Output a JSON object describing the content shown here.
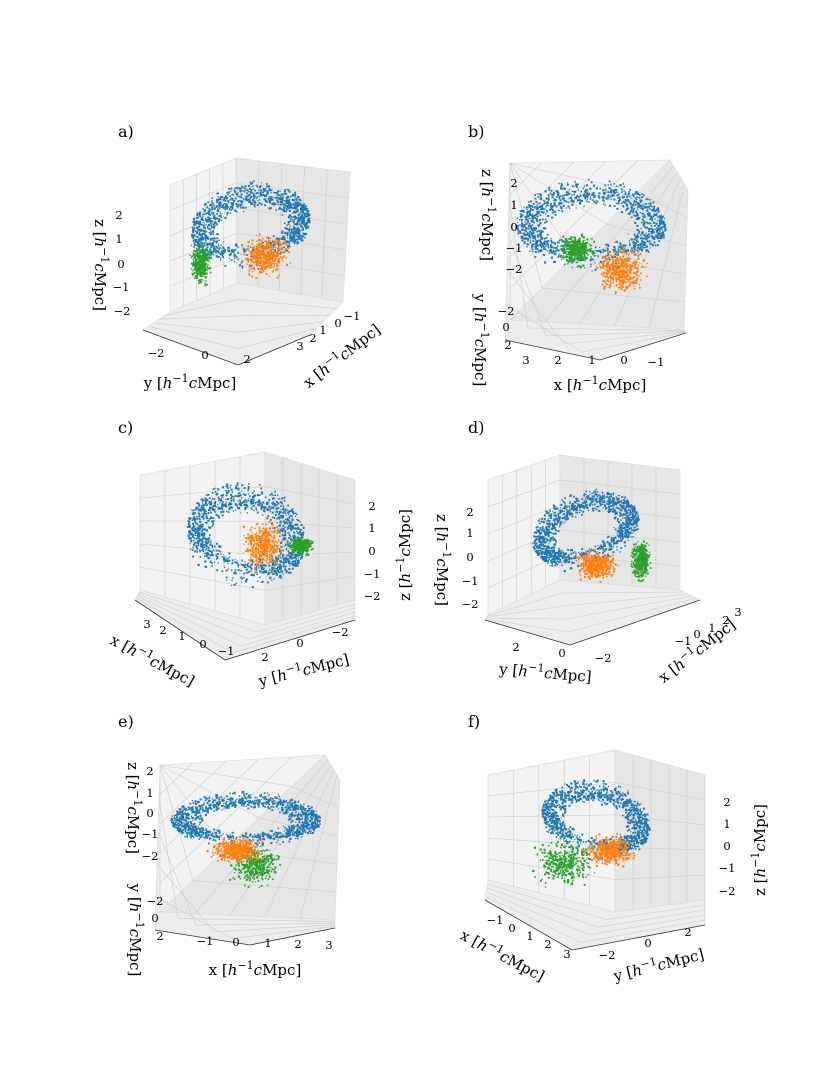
{
  "colors": {
    "blue": "#1f77b4",
    "orange": "#ff7f0e",
    "green": "#2ca02c",
    "pane_left": "#f2f2f2",
    "pane_right": "#e6e6e6",
    "pane_floor": "#ececec",
    "grid": "#cccccc"
  },
  "chart_data": [
    {
      "type": "scatter",
      "panel": "a)",
      "view": "elev 20, azim 30",
      "grid": true,
      "axes": {
        "x": {
          "label": "x  [h⁻¹cMpc]",
          "ticks": [
            "3",
            "2",
            "1",
            "0",
            "−1"
          ]
        },
        "y": {
          "label": "y  [h⁻¹cMpc]",
          "ticks": [
            "−2",
            "0",
            "2"
          ]
        },
        "z": {
          "label": "z  [h⁻¹cMpc]",
          "ticks": [
            "2",
            "1",
            "0",
            "−1",
            "−2"
          ]
        }
      },
      "series": [
        {
          "color": "blue"
        },
        {
          "color": "orange"
        },
        {
          "color": "green"
        }
      ]
    },
    {
      "type": "scatter",
      "panel": "b)",
      "view": "elev 20, azim 95",
      "grid": true,
      "axes": {
        "x": {
          "label": "x  [h⁻¹cMpc]",
          "ticks": [
            "3",
            "2",
            "1",
            "0",
            "−1"
          ]
        },
        "y": {
          "label": "y  [h⁻¹cMpc]",
          "ticks": [
            "−2",
            "0",
            "2"
          ]
        },
        "z": {
          "label": "z  [h⁻¹cMpc]",
          "ticks": [
            "2",
            "1",
            "0",
            "−1",
            "−2"
          ]
        }
      },
      "series": [
        {
          "color": "blue"
        },
        {
          "color": "orange"
        },
        {
          "color": "green"
        }
      ]
    },
    {
      "type": "scatter",
      "panel": "c)",
      "view": "elev 20, azim 140",
      "grid": true,
      "axes": {
        "x": {
          "label": "x  [h⁻¹cMpc]",
          "ticks": [
            "3",
            "2",
            "1",
            "0",
            "−1"
          ]
        },
        "y": {
          "label": "y  [h⁻¹cMpc]",
          "ticks": [
            "2",
            "0",
            "−2"
          ]
        },
        "z": {
          "label": "z  [h⁻¹cMpc]",
          "ticks": [
            "2",
            "1",
            "0",
            "−1",
            "−2"
          ]
        }
      },
      "series": [
        {
          "color": "blue"
        },
        {
          "color": "orange"
        },
        {
          "color": "green"
        }
      ]
    },
    {
      "type": "scatter",
      "panel": "d)",
      "view": "elev 20, azim 210",
      "grid": true,
      "axes": {
        "x": {
          "label": "x  [h⁻¹cMpc]",
          "ticks": [
            "−1",
            "0",
            "1",
            "2",
            "3"
          ]
        },
        "y": {
          "label": "y  [h⁻¹cMpc]",
          "ticks": [
            "2",
            "0",
            "−2"
          ]
        },
        "z": {
          "label": "z  [h⁻¹cMpc]",
          "ticks": [
            "2",
            "1",
            "0",
            "−1",
            "−2"
          ]
        }
      },
      "series": [
        {
          "color": "blue"
        },
        {
          "color": "orange"
        },
        {
          "color": "green"
        }
      ]
    },
    {
      "type": "scatter",
      "panel": "e)",
      "view": "elev 20, azim 275",
      "grid": true,
      "axes": {
        "x": {
          "label": "x  [h⁻¹cMpc]",
          "ticks": [
            "−1",
            "0",
            "1",
            "2",
            "3"
          ]
        },
        "y": {
          "label": "y  [h⁻¹cMpc]",
          "ticks": [
            "−2",
            "0",
            "2"
          ]
        },
        "z": {
          "label": "z  [h⁻¹cMpc]",
          "ticks": [
            "2",
            "1",
            "0",
            "−1",
            "−2"
          ]
        }
      },
      "series": [
        {
          "color": "blue"
        },
        {
          "color": "orange"
        },
        {
          "color": "green"
        }
      ]
    },
    {
      "type": "scatter",
      "panel": "f)",
      "view": "elev 20, azim 320",
      "grid": true,
      "axes": {
        "x": {
          "label": "x  [h⁻¹cMpc]",
          "ticks": [
            "−1",
            "0",
            "1",
            "2",
            "3"
          ]
        },
        "y": {
          "label": "y  [h⁻¹cMpc]",
          "ticks": [
            "−2",
            "0",
            "2"
          ]
        },
        "z": {
          "label": "z  [h⁻¹cMpc]",
          "ticks": [
            "2",
            "1",
            "0",
            "−1",
            "−2"
          ]
        }
      },
      "series": [
        {
          "color": "blue"
        },
        {
          "color": "orange"
        },
        {
          "color": "green"
        }
      ]
    }
  ]
}
